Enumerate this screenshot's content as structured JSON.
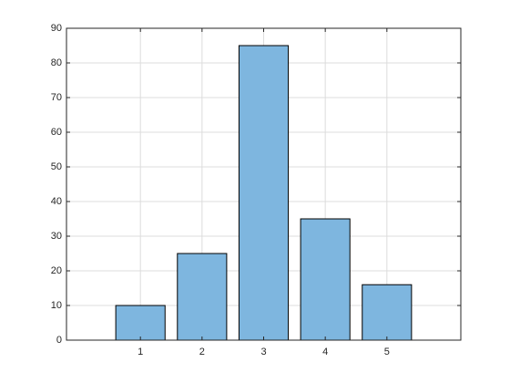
{
  "chart_data": {
    "type": "bar",
    "x": [
      1,
      2,
      3,
      4,
      5
    ],
    "values": [
      10,
      25,
      85,
      35,
      16
    ],
    "color": "#7eb6df",
    "xlim": [
      -0.2,
      6.2
    ],
    "xticks": [
      1,
      2,
      3,
      4,
      5
    ],
    "ylim": [
      0,
      90
    ],
    "yticks": [
      0,
      10,
      20,
      30,
      40,
      50,
      60,
      70,
      80,
      90
    ],
    "grid": true
  }
}
